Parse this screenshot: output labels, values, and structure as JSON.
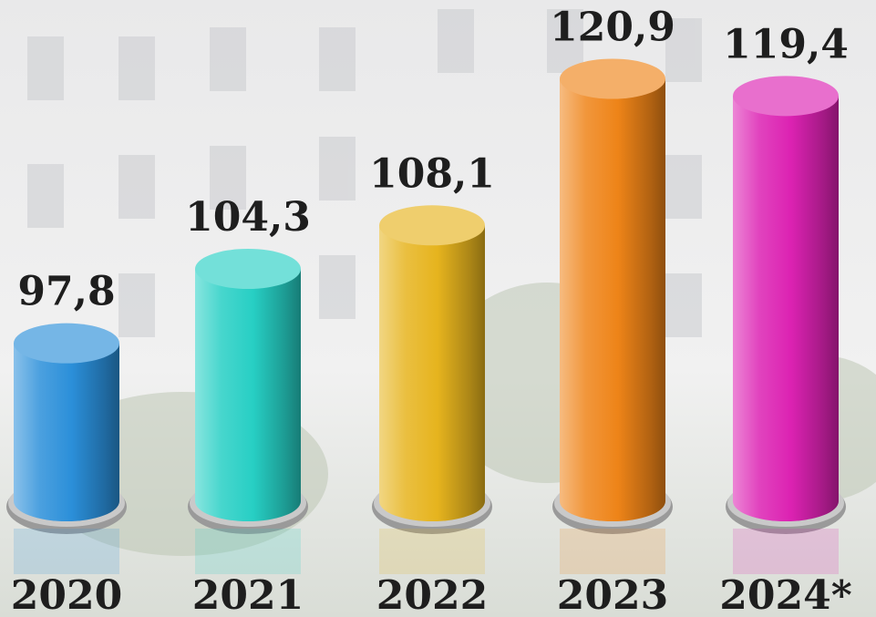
{
  "chart_data": {
    "type": "bar",
    "categories": [
      "2020",
      "2021",
      "2022",
      "2023",
      "2024*"
    ],
    "values": [
      97.8,
      104.3,
      108.1,
      120.9,
      119.4
    ],
    "value_labels": [
      "97,8",
      "104,3",
      "108,1",
      "120,9",
      "119,4"
    ],
    "colors": [
      "#2b8fd9",
      "#27cfc4",
      "#e6b41e",
      "#ee8418",
      "#dc22b2"
    ],
    "ylim": [
      84,
      125
    ]
  }
}
